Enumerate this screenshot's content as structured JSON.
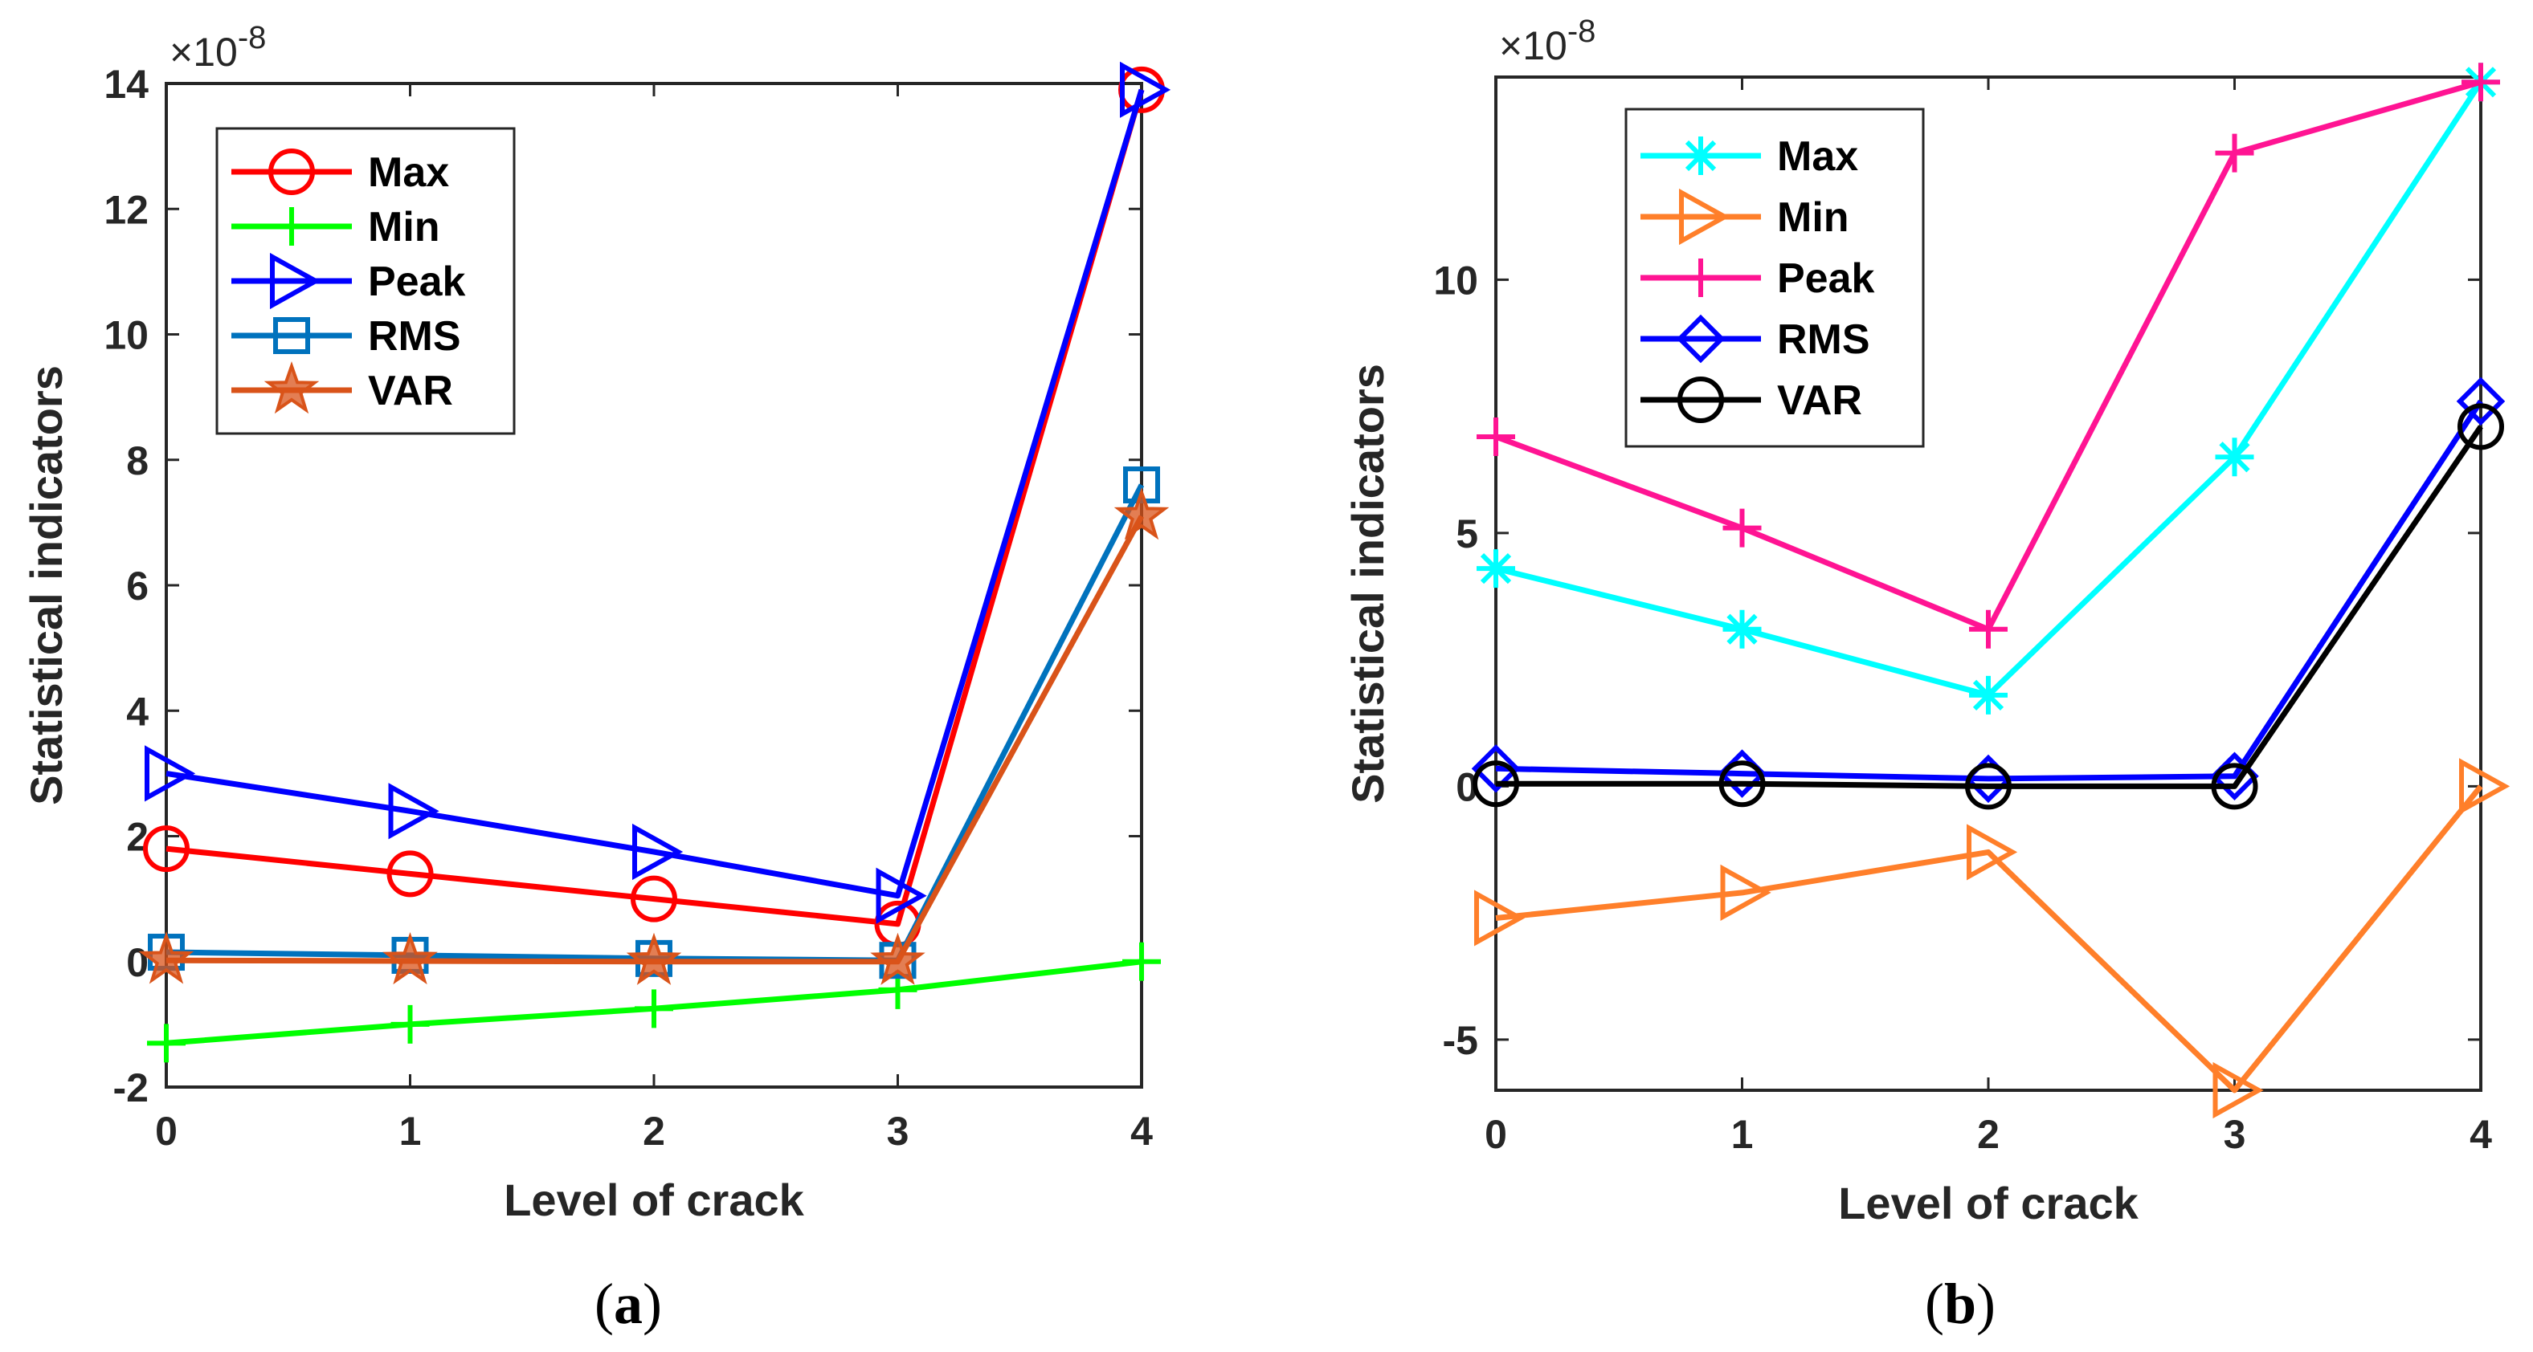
{
  "chart_data": [
    {
      "id": "a",
      "type": "line",
      "caption": {
        "open": "(",
        "letter": "a",
        "close": ")"
      },
      "xlabel": "Level of crack",
      "ylabel": "Statistical indicators",
      "exponent": {
        "base": "×10",
        "power": "-8"
      },
      "x": [
        0,
        1,
        2,
        3,
        4
      ],
      "xlim": [
        0,
        4
      ],
      "ylim": [
        -2,
        14
      ],
      "xticks": [
        0,
        1,
        2,
        3,
        4
      ],
      "yticks": [
        -2,
        0,
        2,
        4,
        6,
        8,
        10,
        12,
        14
      ],
      "xtick_labels": [
        "0",
        "1",
        "2",
        "3",
        "4"
      ],
      "ytick_labels": [
        "-2",
        "0",
        "2",
        "4",
        "6",
        "8",
        "10",
        "12",
        "14"
      ],
      "legend_position": "top-left",
      "series": [
        {
          "name": "Max",
          "values": [
            1.8,
            1.4,
            1.0,
            0.6,
            13.9
          ],
          "color": "#ff0000",
          "marker": "circle"
        },
        {
          "name": "Min",
          "values": [
            -1.3,
            -1.0,
            -0.75,
            -0.45,
            0.0
          ],
          "color": "#00ff00",
          "marker": "plus"
        },
        {
          "name": "Peak",
          "values": [
            3.0,
            2.4,
            1.75,
            1.05,
            13.9
          ],
          "color": "#0000ff",
          "marker": "triangle-right"
        },
        {
          "name": "RMS",
          "values": [
            0.15,
            0.1,
            0.05,
            0.02,
            7.6
          ],
          "color": "#0072bd",
          "marker": "square"
        },
        {
          "name": "VAR",
          "values": [
            0.02,
            0.01,
            0.0,
            0.0,
            7.1
          ],
          "color": "#d95319",
          "marker": "star"
        }
      ]
    },
    {
      "id": "b",
      "type": "line",
      "caption": {
        "open": "(",
        "letter": "b",
        "close": ")"
      },
      "xlabel": "Level of crack",
      "ylabel": "Statistical indicators",
      "exponent": {
        "base": "×10",
        "power": "-8"
      },
      "x": [
        0,
        1,
        2,
        3,
        4
      ],
      "xlim": [
        0,
        4
      ],
      "ylim": [
        -6,
        14
      ],
      "xticks": [
        0,
        1,
        2,
        3,
        4
      ],
      "yticks": [
        -5,
        0,
        5,
        10
      ],
      "xtick_labels": [
        "0",
        "1",
        "2",
        "3",
        "4"
      ],
      "ytick_labels": [
        "-5",
        "0",
        "5",
        "10"
      ],
      "legend_position": "top-left",
      "series": [
        {
          "name": "Max",
          "values": [
            4.3,
            3.1,
            1.8,
            6.5,
            13.9
          ],
          "color": "#00ffff",
          "marker": "asterisk"
        },
        {
          "name": "Min",
          "values": [
            -2.6,
            -2.1,
            -1.3,
            -6.0,
            0.0
          ],
          "color": "#ff7f2a",
          "marker": "triangle-right"
        },
        {
          "name": "Peak",
          "values": [
            6.9,
            5.1,
            3.1,
            12.5,
            13.9
          ],
          "color": "#ff1493",
          "marker": "plus"
        },
        {
          "name": "RMS",
          "values": [
            0.35,
            0.25,
            0.15,
            0.2,
            7.6
          ],
          "color": "#0000ff",
          "marker": "diamond"
        },
        {
          "name": "VAR",
          "values": [
            0.05,
            0.05,
            0.0,
            0.0,
            7.1
          ],
          "color": "#000000",
          "marker": "circle"
        }
      ]
    }
  ]
}
